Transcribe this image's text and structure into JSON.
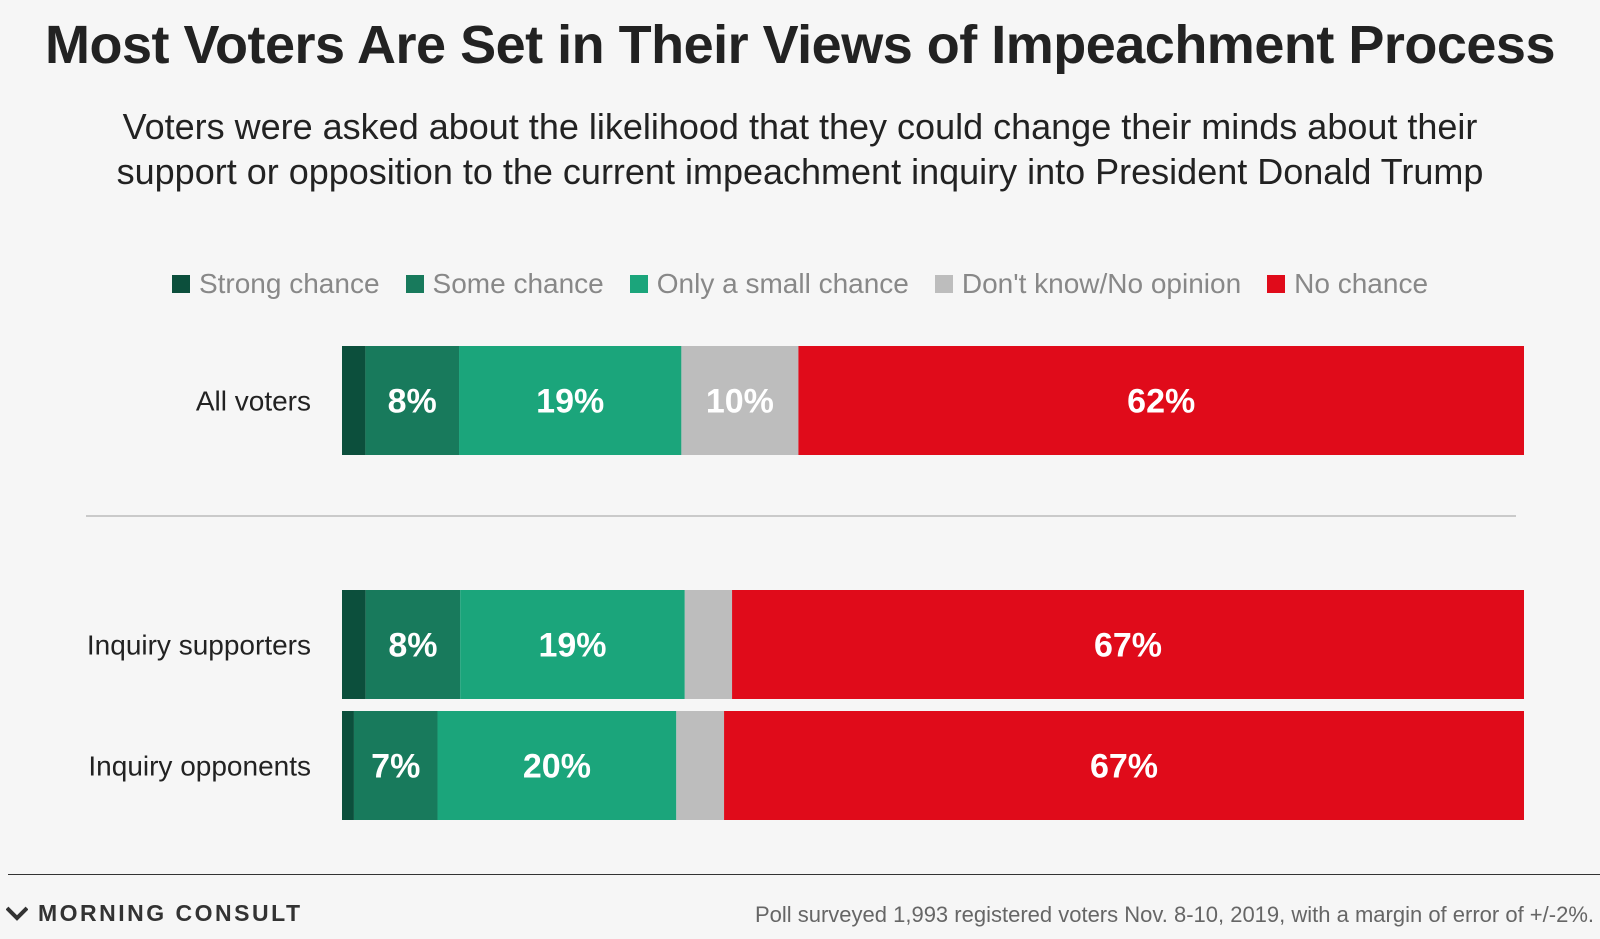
{
  "chart_data": {
    "type": "bar",
    "orientation": "horizontal-stacked-100",
    "title": "Most Voters Are Set in Their Views of Impeachment Process",
    "subtitle": [
      "Voters were asked about the likelihood that they could change their minds about their",
      "support or opposition to the current impeachment inquiry into President Donald Trump"
    ],
    "legend_position": "top-center",
    "categories": [
      "All voters",
      "Inquiry supporters",
      "Inquiry opponents"
    ],
    "series": [
      {
        "name": "Strong chance",
        "color": "#0c4f3c",
        "values": [
          2,
          2,
          1
        ],
        "labels": [
          "",
          "",
          ""
        ]
      },
      {
        "name": "Some chance",
        "color": "#187a5c",
        "values": [
          8,
          8,
          7
        ],
        "labels": [
          "8%",
          "8%",
          "7%"
        ]
      },
      {
        "name": "Only a small chance",
        "color": "#1ba57b",
        "values": [
          19,
          19,
          20
        ],
        "labels": [
          "19%",
          "19%",
          "20%"
        ]
      },
      {
        "name": "Don't know/No opinion",
        "color": "#bdbdbd",
        "values": [
          10,
          4,
          4
        ],
        "labels": [
          "10%",
          "",
          ""
        ]
      },
      {
        "name": "No chance",
        "color": "#e00b1a",
        "values": [
          62,
          67,
          67
        ],
        "labels": [
          "62%",
          "67%",
          "67%"
        ]
      }
    ],
    "xlim": [
      0,
      100
    ]
  },
  "footer": {
    "brand": "MORNING CONSULT",
    "note": "Poll surveyed 1,993 registered voters Nov. 8-10, 2019, with a margin of error of +/-2%."
  }
}
